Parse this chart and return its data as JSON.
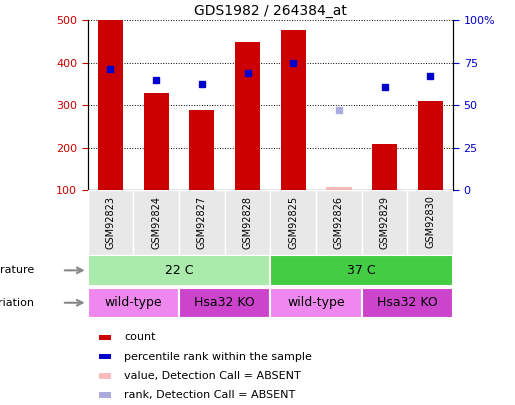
{
  "title": "GDS1982 / 264384_at",
  "samples": [
    "GSM92823",
    "GSM92824",
    "GSM92827",
    "GSM92828",
    "GSM92825",
    "GSM92826",
    "GSM92829",
    "GSM92830"
  ],
  "bar_heights": [
    500,
    330,
    288,
    450,
    478,
    108,
    210,
    310
  ],
  "bar_color": "#cc0000",
  "bar_bottom": 100,
  "absent_bar_indices": [
    5
  ],
  "percentile_rank_present": [
    385,
    360,
    350,
    375,
    400,
    null,
    342,
    370
  ],
  "percentile_rank_absent": [
    null,
    null,
    null,
    null,
    null,
    288,
    null,
    null
  ],
  "ylim_left": [
    100,
    500
  ],
  "yticks_left": [
    100,
    200,
    300,
    400,
    500
  ],
  "yticks_right": [
    0,
    25,
    50,
    75,
    100
  ],
  "yticklabels_right": [
    "0",
    "25",
    "50",
    "75",
    "100%"
  ],
  "temperature_groups": [
    {
      "label": "22 C",
      "start": 0,
      "end": 4,
      "color": "#aaeaaa"
    },
    {
      "label": "37 C",
      "start": 4,
      "end": 8,
      "color": "#44cc44"
    }
  ],
  "genotype_groups": [
    {
      "label": "wild-type",
      "start": 0,
      "end": 2,
      "color": "#ee88ee"
    },
    {
      "label": "Hsa32 KO",
      "start": 2,
      "end": 4,
      "color": "#cc44cc"
    },
    {
      "label": "wild-type",
      "start": 4,
      "end": 6,
      "color": "#ee88ee"
    },
    {
      "label": "Hsa32 KO",
      "start": 6,
      "end": 8,
      "color": "#cc44cc"
    }
  ],
  "legend_items": [
    {
      "label": "count",
      "color": "#cc0000"
    },
    {
      "label": "percentile rank within the sample",
      "color": "#0000cc"
    },
    {
      "label": "value, Detection Call = ABSENT",
      "color": "#ffbbbb"
    },
    {
      "label": "rank, Detection Call = ABSENT",
      "color": "#aaaadd"
    }
  ],
  "bar_width": 0.55,
  "tick_label_fontsize": 7,
  "title_fontsize": 10,
  "left_tick_color": "#cc0000",
  "right_tick_color": "#0000cc",
  "bg_color": "#e8e8e8"
}
